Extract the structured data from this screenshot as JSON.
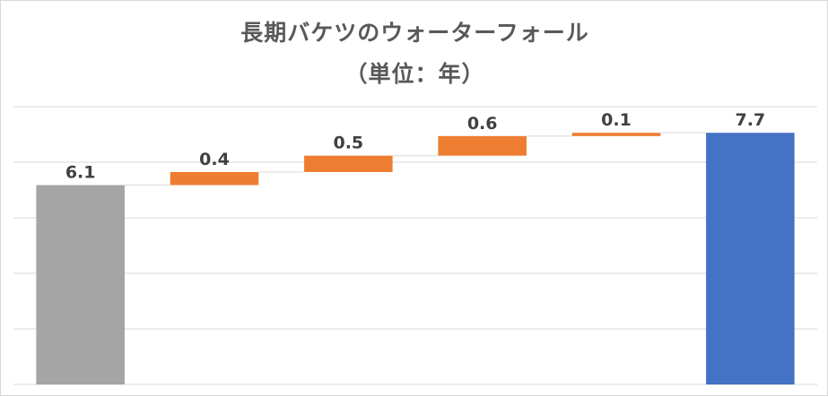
{
  "chart_data": {
    "type": "bar",
    "subtype": "waterfall",
    "title": "長期バケツのウォーターフォール",
    "subtitle": "（単位：年）",
    "categories": [
      "",
      "",
      "",
      "",
      "",
      ""
    ],
    "values": [
      6.1,
      0.4,
      0.5,
      0.6,
      0.1,
      7.7
    ],
    "labels": [
      "6.1",
      "0.4",
      "0.5",
      "0.6",
      "0.1",
      "7.7"
    ],
    "kinds": [
      "start",
      "increase",
      "increase",
      "increase",
      "increase",
      "total"
    ],
    "ylim": [
      0,
      8.5
    ],
    "grid": true,
    "legend": "none",
    "colors": {
      "start": "#a5a5a5",
      "increase": "#ed7d31",
      "total": "#4472c4",
      "grid": "#d9d9d9",
      "connector": "#d9d9d9"
    }
  }
}
